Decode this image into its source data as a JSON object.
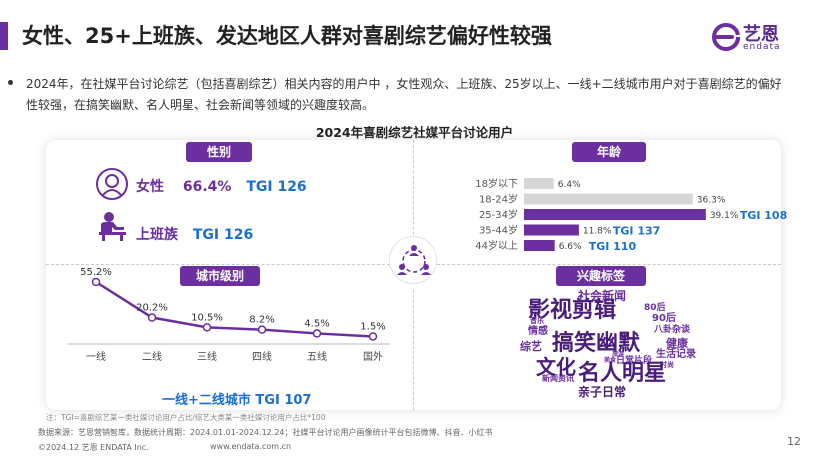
{
  "header": {
    "title": "女性、25+上班族、发达地区人群对喜剧综艺偏好性较强",
    "logo_cn": "艺恩",
    "logo_en": "endata"
  },
  "summary": "2024年，在社媒平台讨论综艺（包括喜剧综艺）相关内容的用户中 ，女性观众、上班族、25岁以上、一线+二线城市用户对于喜剧综艺的偏好性较强，在搞笑幽默、名人明星、社会新闻等领域的兴趣度较高。",
  "chart_title": "2024年喜剧综艺社媒平台讨论用户",
  "gender": {
    "tag": "性别",
    "female_label": "女性",
    "female_pct": "66.4%",
    "female_tgi": "TGI 126",
    "worker_label": "上班族",
    "worker_tgi": "TGI 126"
  },
  "age": {
    "tag": "年龄",
    "groups": [
      {
        "label": "18岁以下",
        "value_label": "6.4%",
        "tgi": ""
      },
      {
        "label": "18-24岁",
        "value_label": "36.3%",
        "tgi": ""
      },
      {
        "label": "25-34岁",
        "value_label": "39.1%",
        "tgi": "TGI 108"
      },
      {
        "label": "35-44岁",
        "value_label": "11.8%",
        "tgi": "TGI 137"
      },
      {
        "label": "44岁以上",
        "value_label": "6.6%",
        "tgi": "TGI 110"
      }
    ]
  },
  "city": {
    "tag": "城市级别",
    "summary": "一线+二线城市 TGI 107"
  },
  "interest": {
    "tag": "兴趣标签",
    "words": [
      "社会新闻",
      "80后",
      "影视剪辑",
      "90后",
      "音乐",
      "情感",
      "八卦杂谈",
      "健康",
      "搞笑幽默",
      "综艺",
      "生活记录",
      "日常片段",
      "新闻资讯",
      "时尚",
      "文化",
      "名人明星",
      "旅游",
      "美食",
      "亲子日常"
    ]
  },
  "footer": {
    "note": "注：TGI=喜剧综艺某一类社媒讨论用户占比/综艺大类某一类社媒讨论用户占比*100",
    "source": "数据来源：艺恩营销智库，数据统计周期：2024.01.01-2024.12.24；社媒平台讨论用户画像统计平台包括微博、抖音、小红书",
    "copyright": "©2024.12 艺恩 ENDATA Inc.",
    "website": "www.endata.com.cn",
    "page": "12"
  },
  "colors": {
    "accent": "#6b2fa0",
    "bar_grey": "#d6d6d6",
    "tgi_blue": "#1a6fd0",
    "line_purple": "#6b2fa0"
  },
  "chart_data": [
    {
      "type": "bar",
      "orientation": "horizontal",
      "title": "",
      "categories": [
        "18岁以下",
        "18-24岁",
        "25-34岁",
        "35-44岁",
        "44岁以上"
      ],
      "values": [
        6.4,
        36.3,
        39.1,
        11.8,
        6.6
      ],
      "highlighted": [
        "25-34岁",
        "35-44岁",
        "44岁以上"
      ],
      "tgi": [
        null,
        null,
        108,
        137,
        110
      ],
      "unit": "%"
    },
    {
      "type": "line",
      "title": "",
      "categories": [
        "一线",
        "二线",
        "三线",
        "四线",
        "五线",
        "国外"
      ],
      "values": [
        55.2,
        20.2,
        10.5,
        8.2,
        4.5,
        1.5
      ],
      "unit": "%"
    }
  ]
}
